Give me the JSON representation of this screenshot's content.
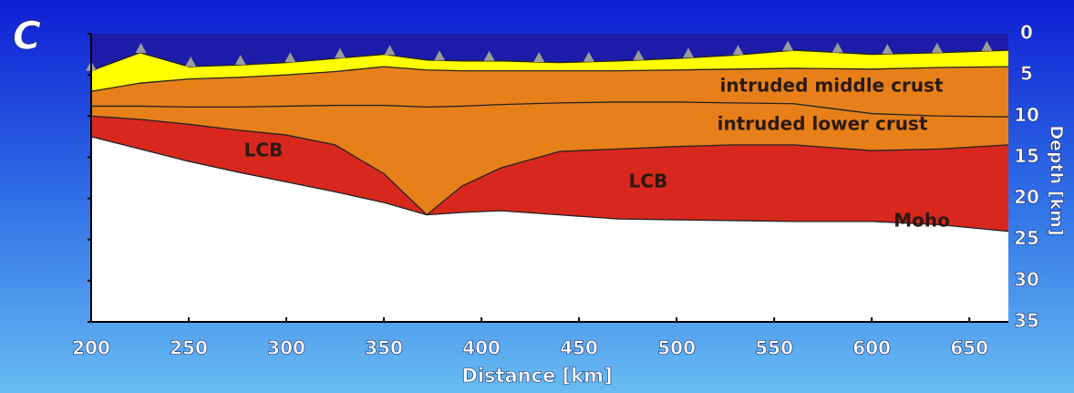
{
  "chart_data": {
    "type": "cross-section",
    "panel_label": "C",
    "xlabel": "Distance [km]",
    "ylabel": "Depth [km]",
    "xlim": [
      200,
      670
    ],
    "ylim": [
      0,
      35
    ],
    "y_inverted": true,
    "xticks": [
      200,
      250,
      300,
      350,
      400,
      450,
      500,
      550,
      600,
      650
    ],
    "yticks": [
      0,
      5,
      10,
      15,
      20,
      25,
      30,
      35
    ],
    "background": "#1c1ca8",
    "x": [
      200,
      225,
      250,
      275,
      300,
      325,
      350,
      372,
      390,
      410,
      440,
      470,
      500,
      530,
      560,
      600,
      635,
      670
    ],
    "series": [
      {
        "color": "#ffff00",
        "values": [
          4.5,
          2.3,
          4.0,
          3.8,
          3.5,
          3.0,
          2.5,
          3.2,
          3.3,
          3.3,
          3.5,
          3.3,
          3.0,
          2.6,
          2.0,
          2.5,
          2.3,
          2.0
        ]
      },
      {
        "color": "#e8801a",
        "values": [
          7.0,
          6.0,
          5.5,
          5.3,
          5.0,
          4.6,
          4.0,
          4.4,
          4.5,
          4.5,
          4.5,
          4.5,
          4.4,
          4.3,
          4.2,
          4.3,
          4.1,
          4.0
        ]
      },
      {
        "color": "#e8801a",
        "values": [
          8.8,
          8.8,
          8.9,
          8.9,
          8.8,
          8.7,
          8.7,
          8.9,
          8.8,
          8.6,
          8.4,
          8.3,
          8.3,
          8.4,
          8.5,
          9.7,
          10.0,
          10.1
        ]
      },
      {
        "color": "#d8281e",
        "values": [
          10.0,
          10.4,
          11.0,
          11.7,
          12.3,
          13.5,
          17.0,
          22.0,
          18.5,
          16.3,
          14.3,
          14.0,
          13.7,
          13.5,
          13.5,
          14.2,
          14.0,
          13.5
        ]
      },
      {
        "color": "#ffffff",
        "values": [
          12.5,
          14.0,
          15.5,
          16.8,
          18.0,
          19.2,
          20.5,
          22.0,
          21.7,
          21.5,
          22.0,
          22.5,
          22.6,
          22.7,
          22.8,
          22.8,
          23.2,
          24.0
        ]
      }
    ],
    "annotations": [
      "intruded middle crust",
      "intruded lower crust",
      "LCB",
      "LCB",
      "Moho"
    ]
  }
}
